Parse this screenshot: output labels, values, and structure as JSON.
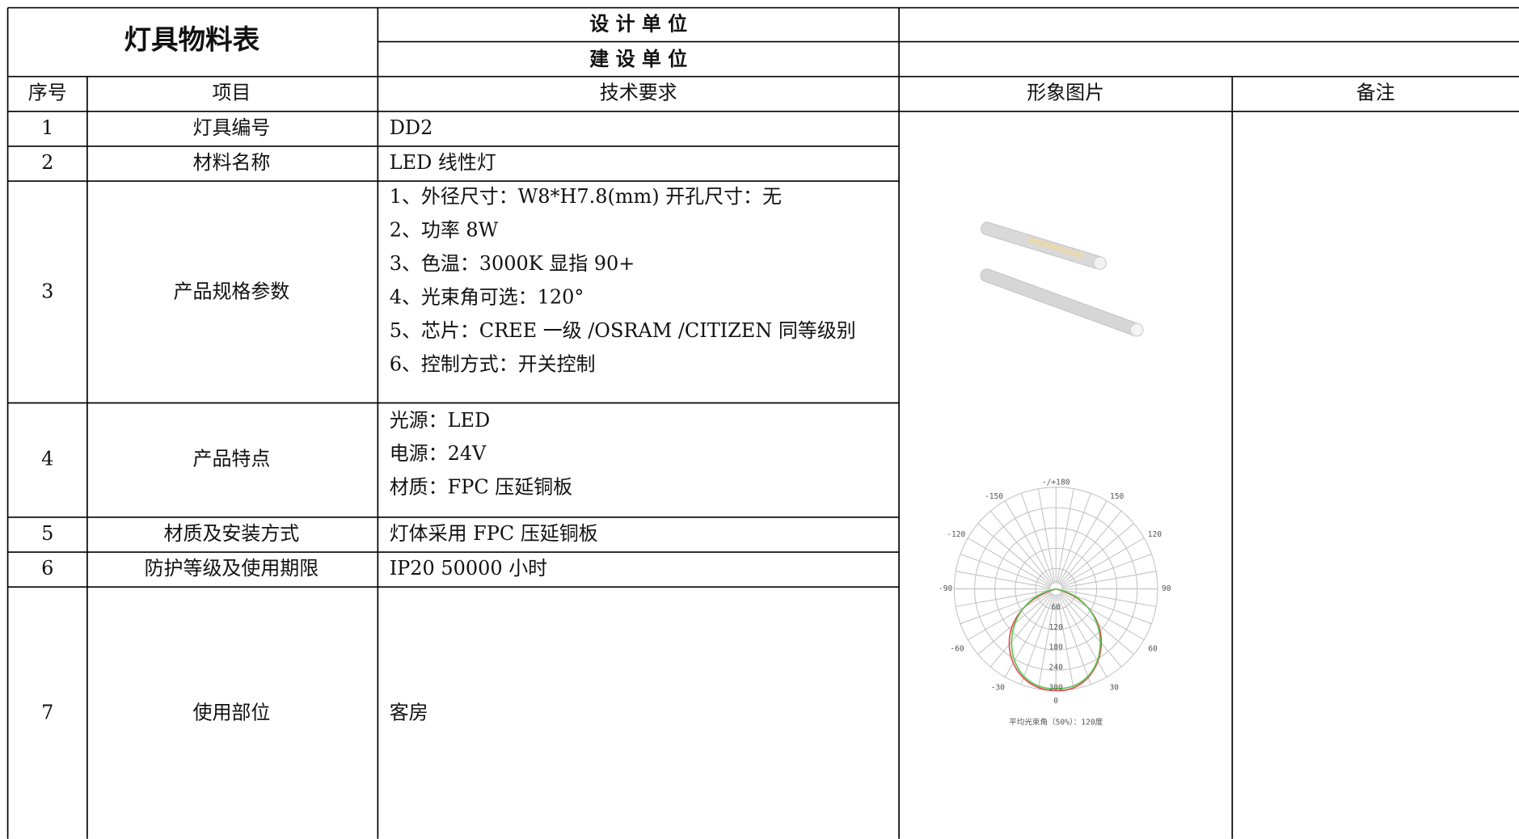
{
  "header": {
    "title": "灯具物料表",
    "design_unit_label": "设 计 单 位",
    "construction_unit_label": "建 设 单 位"
  },
  "table": {
    "columns": [
      "序号",
      "项目",
      "技术要求",
      "形象图片",
      "备注"
    ],
    "rows": [
      {
        "no": "1",
        "item": "灯具编号",
        "requirements": [
          "DD2"
        ]
      },
      {
        "no": "2",
        "item": "材料名称",
        "requirements": [
          "LED 线性灯"
        ]
      },
      {
        "no": "3",
        "item": "产品规格参数",
        "requirements": [
          "1、外径尺寸：W8*H7.8(mm)   开孔尺寸：无",
          "2、功率 8W",
          "3、色温：3000K 显指 90+",
          "4、光束角可选：120°",
          "5、芯片：CREE 一级 /OSRAM /CITIZEN 同等级别",
          "6、控制方式：开关控制"
        ]
      },
      {
        "no": "4",
        "item": "产品特点",
        "requirements": [
          "光源：LED",
          "电源：24V",
          "材质：FPC 压延铜板"
        ]
      },
      {
        "no": "5",
        "item": "材质及安装方式",
        "requirements": [
          "灯体采用 FPC 压延铜板"
        ]
      },
      {
        "no": "6",
        "item": "防护等级及使用期限",
        "requirements": [
          "IP20   50000 小时"
        ]
      },
      {
        "no": "7",
        "item": "使用部位",
        "requirements": [
          "客房"
        ]
      }
    ]
  },
  "photometric": {
    "angle_labels": [
      "-/+180",
      "150",
      "120",
      "90",
      "60",
      "30",
      "0",
      "-30",
      "-60",
      "-90",
      "-120",
      "-150"
    ],
    "radial_labels": [
      "60",
      "120",
      "180",
      "240",
      "300"
    ],
    "caption": "平均光束角（50%）：120度"
  }
}
